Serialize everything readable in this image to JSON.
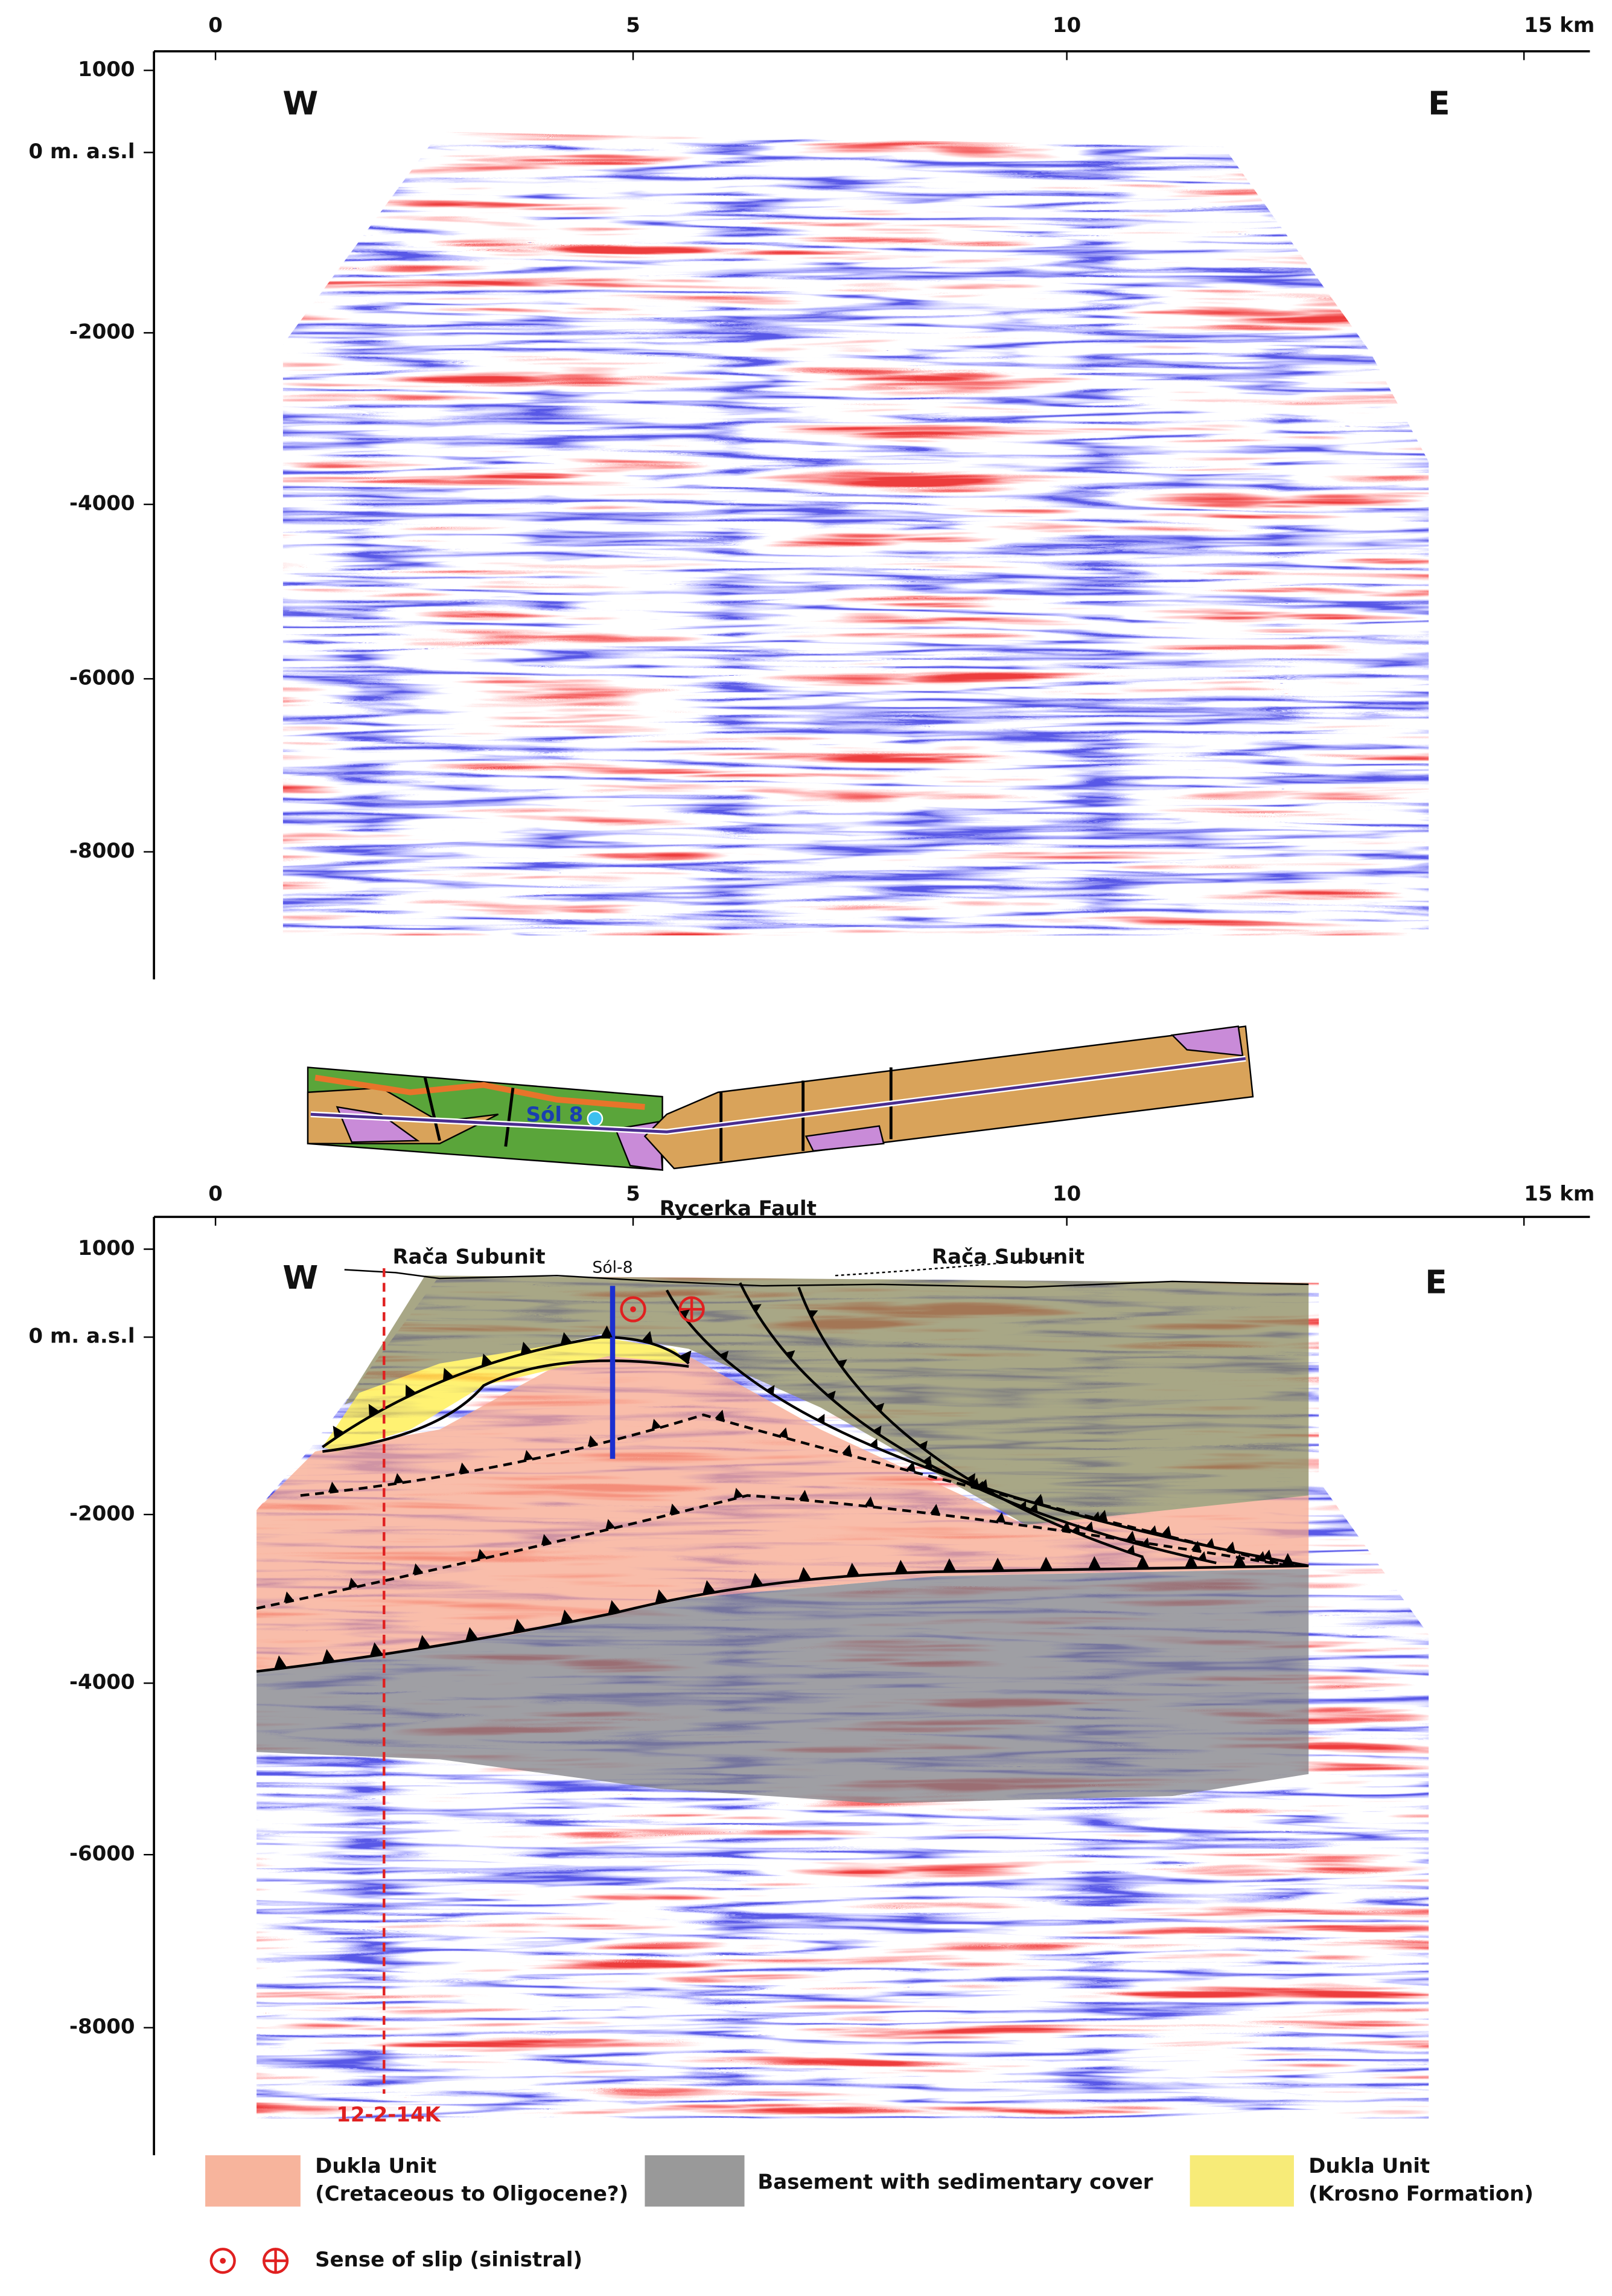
{
  "top_section": {
    "x_axis": {
      "ticks": [
        "0",
        "5",
        "10",
        "15 km"
      ]
    },
    "y_axis": {
      "ticks": [
        "1000",
        "0 m. a.s.l",
        "-2000",
        "-4000",
        "-6000",
        "-8000"
      ]
    },
    "west": "W",
    "east": "E"
  },
  "map": {
    "well": "Sól 8"
  },
  "bottom_section": {
    "x_axis": {
      "ticks": [
        "0",
        "5",
        "10",
        "15 km"
      ]
    },
    "y_axis": {
      "ticks": [
        "1000",
        "0 m. a.s.l",
        "-2000",
        "-4000",
        "-6000",
        "-8000"
      ]
    },
    "west": "W",
    "east": "E",
    "fault": "Rycerka Fault",
    "subunit_labels": [
      "Rača Subunit",
      "Rača Subunit"
    ],
    "well": "Sól-8",
    "profile": "12-2-14K"
  },
  "legend": {
    "items": [
      {
        "label": "Dukla Unit",
        "sublabel": "(Cretaceous to Oligocene?)"
      },
      {
        "label": "Basement with sedimentary cover"
      },
      {
        "label": "Dukla Unit",
        "sublabel": "(Krosno Formation)"
      }
    ],
    "slip": "Sense of slip (sinistral)"
  }
}
